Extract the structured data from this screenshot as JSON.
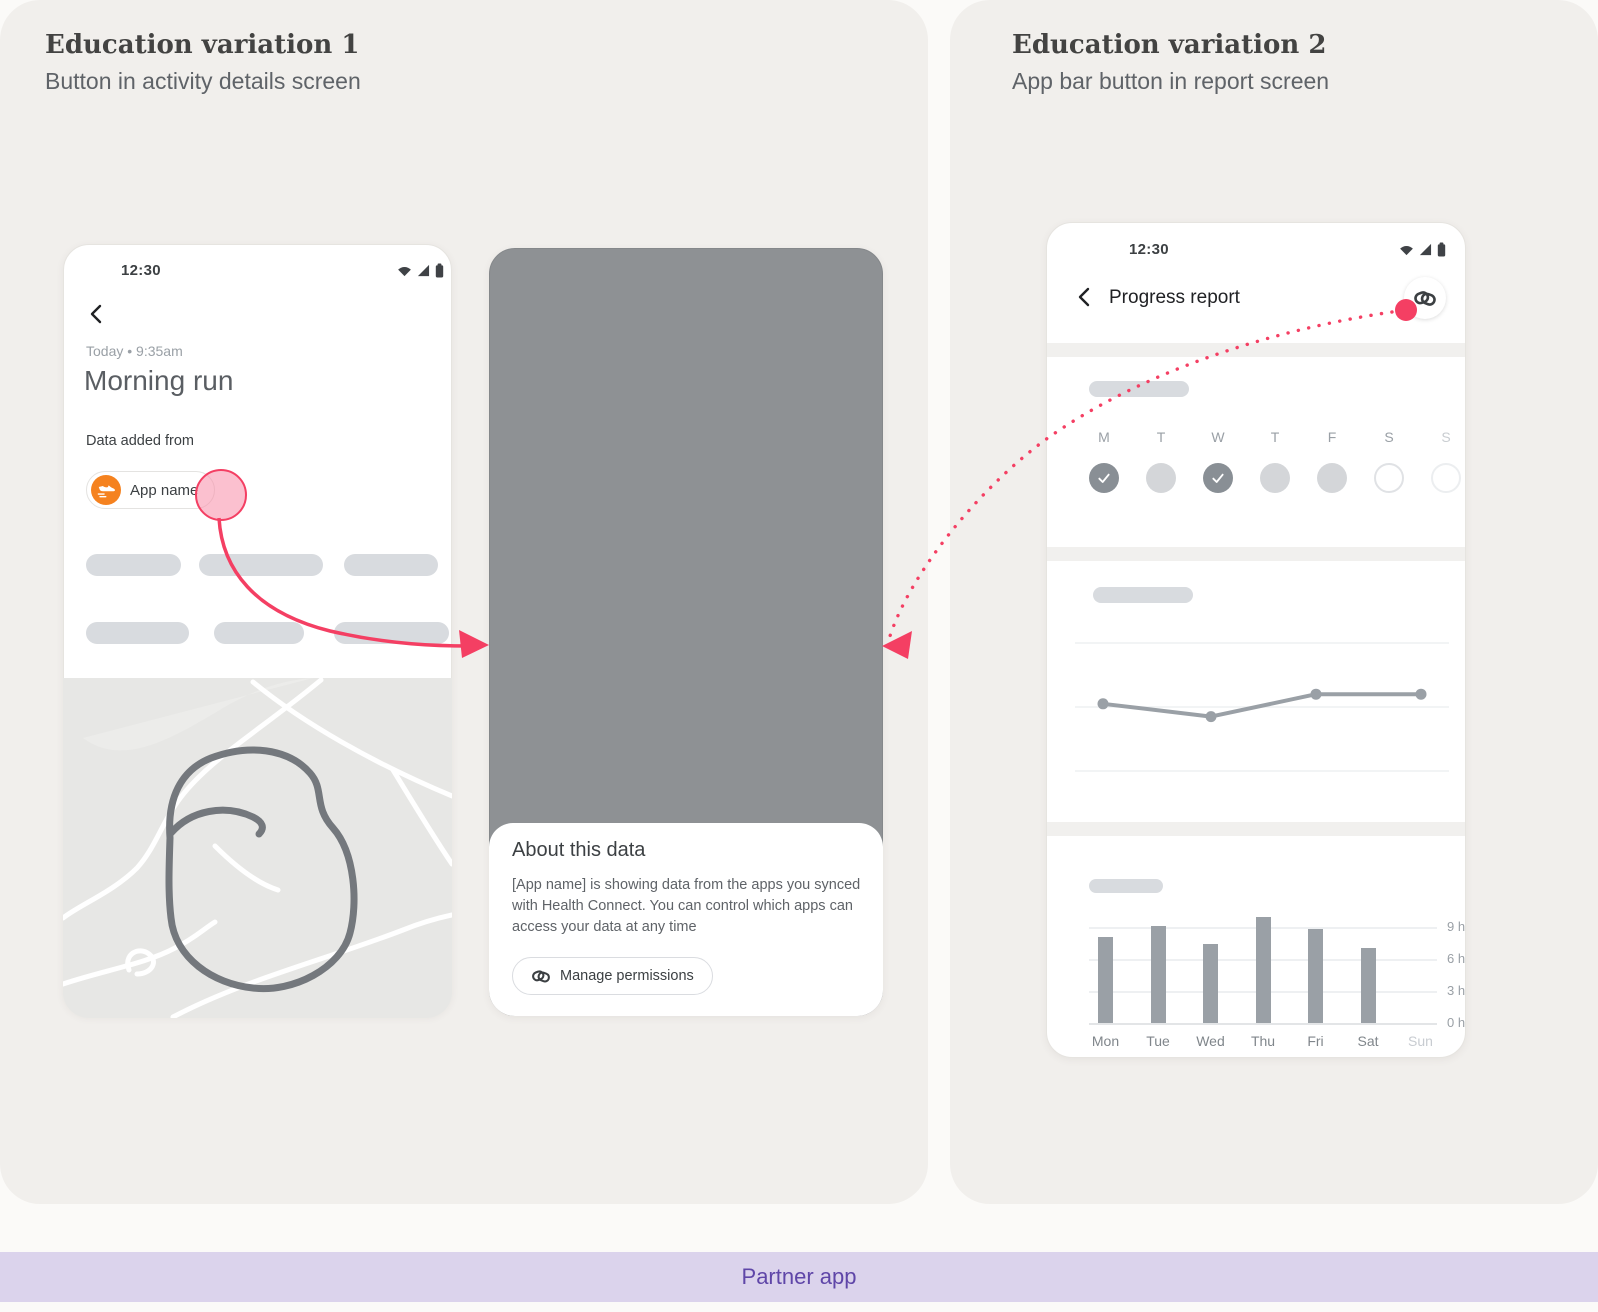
{
  "colors": {
    "accent_pink": "#f43f63",
    "footer_bg": "#dbd3ec",
    "footer_text": "#5f46a8",
    "app_icon_orange": "#f5821f",
    "chart_gray": "#9aa0a6",
    "card_bg": "#f1efec"
  },
  "panel_left": {
    "title": "Education variation 1",
    "subtitle": "Button in activity details screen"
  },
  "panel_right": {
    "title": "Education variation 2",
    "subtitle": "App bar button in report screen"
  },
  "activity_screen": {
    "status_time": "12:30",
    "timestamp": "Today • 9:35am",
    "title": "Morning run",
    "data_added_from": "Data added from",
    "app_chip": "App name"
  },
  "about_sheet": {
    "heading": "About this data",
    "body": "[App name] is showing data from the apps you synced with Health Connect. You can control which apps can access your data at any time",
    "manage_button": "Manage permissions"
  },
  "report_screen": {
    "status_time": "12:30",
    "title": "Progress report",
    "week_labels": [
      "M",
      "T",
      "W",
      "T",
      "F",
      "S",
      "S"
    ],
    "week_states": [
      "checked",
      "filled",
      "checked",
      "filled",
      "filled",
      "outline",
      "outline-faint"
    ]
  },
  "chart_data": [
    {
      "type": "line",
      "x": [
        1,
        2,
        3,
        4
      ],
      "values": [
        1.05,
        0.85,
        1.2,
        1.2
      ],
      "ylim": [
        0,
        2
      ],
      "grid": true,
      "title": "",
      "xlabel": "",
      "ylabel": ""
    },
    {
      "type": "bar",
      "categories": [
        "Mon",
        "Tue",
        "Wed",
        "Thu",
        "Fri",
        "Sat",
        "Sun"
      ],
      "values": [
        8.1,
        9.1,
        7.4,
        9.9,
        8.8,
        7.0,
        0
      ],
      "yticks": [
        {
          "v": 9,
          "label": "9 h"
        },
        {
          "v": 6,
          "label": "6 h"
        },
        {
          "v": 3,
          "label": "3 h"
        },
        {
          "v": 0,
          "label": "0 h"
        }
      ],
      "ylim": [
        0,
        10.7
      ],
      "muted_categories": [
        "Sun"
      ],
      "title": "",
      "xlabel": "",
      "ylabel": ""
    }
  ],
  "icons": {
    "status_bar": [
      "wifi-icon",
      "cell-signal-icon",
      "battery-icon"
    ],
    "back": "chevron-left-icon",
    "health_connect": "health-connect-rings-icon",
    "app_chip": "running-shoe-icon",
    "week_done": "check-icon"
  },
  "footer": {
    "label": "Partner app"
  }
}
